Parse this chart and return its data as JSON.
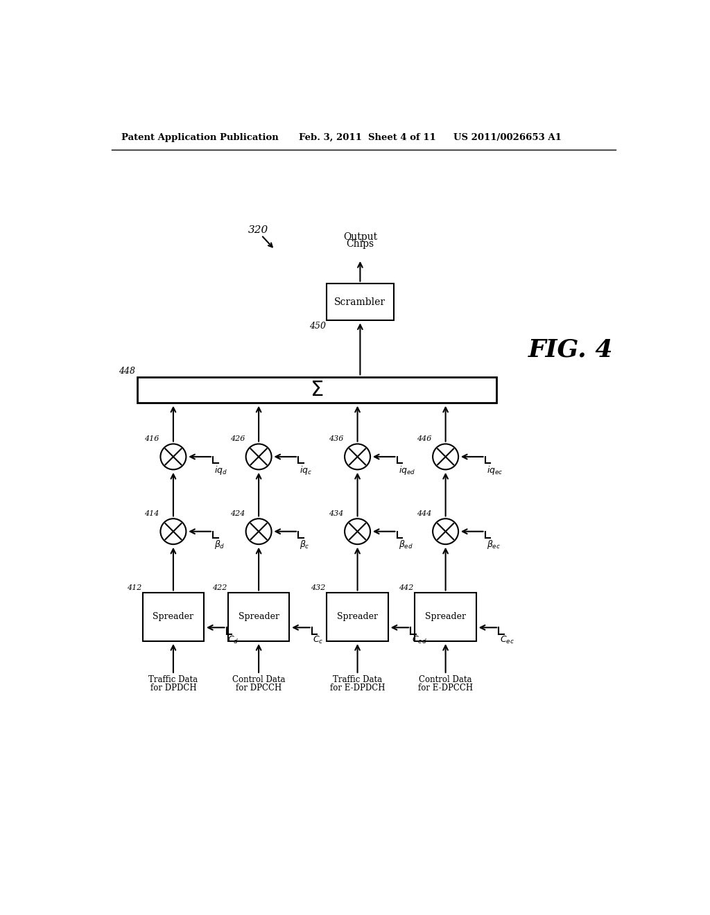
{
  "header_left": "Patent Application Publication",
  "header_mid": "Feb. 3, 2011   Sheet 4 of 11",
  "header_right": "US 2011/0026653 A1",
  "fig_label": "FIG. 4",
  "diagram_ref": "320",
  "channels": [
    {
      "id": "d",
      "spreader_label": "Spreader",
      "spreader_num": "412",
      "code_sub": "d",
      "beta_sub": "d",
      "beta_num": "414",
      "iq_sub": "d",
      "iq_num": "416",
      "input_line1": "Traffic Data",
      "input_line2": "for DPDCH",
      "col": 0
    },
    {
      "id": "c",
      "spreader_label": "Spreader",
      "spreader_num": "422",
      "code_sub": "c",
      "beta_sub": "c",
      "beta_num": "424",
      "iq_sub": "c",
      "iq_num": "426",
      "input_line1": "Control Data",
      "input_line2": "for DPCCH",
      "col": 1
    },
    {
      "id": "ed",
      "spreader_label": "Spreader",
      "spreader_num": "432",
      "code_sub": "ed",
      "beta_sub": "ed",
      "beta_num": "434",
      "iq_sub": "ed",
      "iq_num": "436",
      "input_line1": "Traffic Data",
      "input_line2": "for E-DPDCH",
      "col": 2
    },
    {
      "id": "ec",
      "spreader_label": "Spreader",
      "spreader_num": "442",
      "code_sub": "ec",
      "beta_sub": "ec",
      "beta_num": "444",
      "iq_sub": "ec",
      "iq_num": "446",
      "input_line1": "Control Data",
      "input_line2": "for E-DPCCH",
      "col": 3
    }
  ],
  "summer_num": "448",
  "scrambler_label": "Scrambler",
  "scrambler_num": "450",
  "output_line1": "Output",
  "output_line2": "Chips",
  "bg_color": "#ffffff"
}
